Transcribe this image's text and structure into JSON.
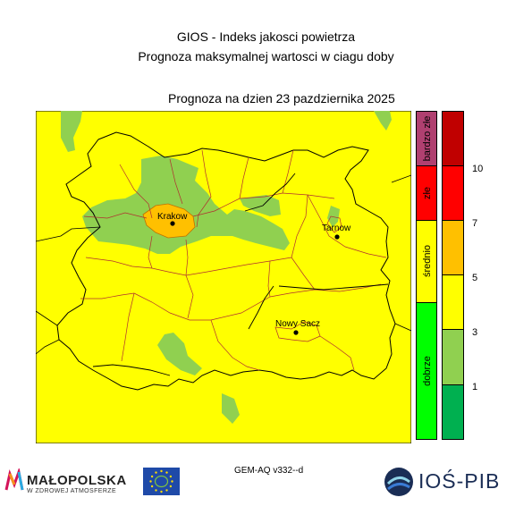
{
  "header": {
    "title_line1": "GIOS - Indeks jakosci powietrza",
    "title_line2": "Prognoza maksymalnej wartosci w ciagu doby",
    "forecast_date": "Prognoza na dzien  23 pazdziernika 2025"
  },
  "map": {
    "cities": [
      {
        "name": "Krakow"
      },
      {
        "name": "Tarnow"
      },
      {
        "name": "Nowy Sacz"
      }
    ],
    "background_color": "#ffff00",
    "border_color": "#000000",
    "district_color": "#b03030"
  },
  "legend": {
    "categories": [
      {
        "label": "bardzo złe",
        "color": "#b04070"
      },
      {
        "label": "złe",
        "color": "#ff0000"
      },
      {
        "label": "średnio",
        "color": "#ffff00"
      },
      {
        "label": "dobrze",
        "color": "#00ff00"
      }
    ],
    "scale": [
      {
        "color": "#00b050"
      },
      {
        "color": "#90d050"
      },
      {
        "color": "#ffff00"
      },
      {
        "color": "#ffc000"
      },
      {
        "color": "#ff0000"
      },
      {
        "color": "#c00000"
      }
    ],
    "ticks": [
      "1",
      "3",
      "5",
      "7",
      "10"
    ]
  },
  "footer": {
    "model_label": "GEM-AQ v332--d",
    "malopolska_name": "MAŁOPOLSKA",
    "malopolska_tagline": "W ZDROWEJ ATMOSFERZE",
    "ios_name": "IOŚ-PIB"
  }
}
